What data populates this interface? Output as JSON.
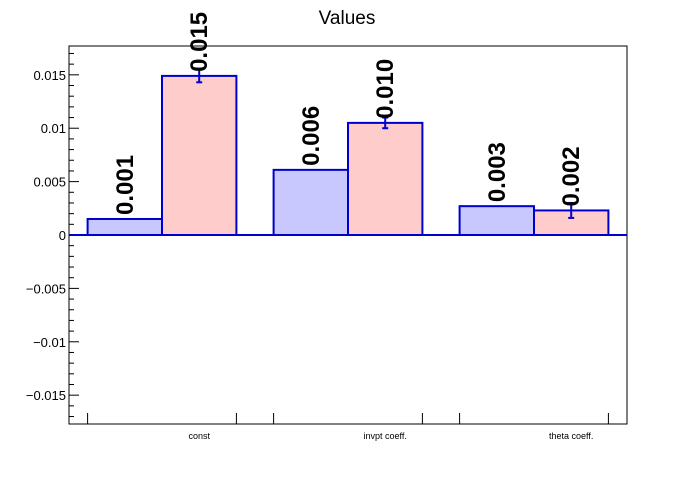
{
  "chart_data": {
    "type": "bar",
    "title": "Values",
    "xlabel": "",
    "ylabel": "",
    "categories": [
      "const",
      "invpt coeff.",
      "theta coeff."
    ],
    "ylim": [
      -0.0177,
      0.0177
    ],
    "yticks": [
      -0.015,
      -0.01,
      -0.005,
      0,
      0.005,
      0.01,
      0.015
    ],
    "ytick_labels": [
      "−0.015",
      "−0.01",
      "−0.005",
      "0",
      "0.005",
      "0.01",
      "0.015"
    ],
    "grid": false,
    "series": [
      {
        "values": [
          0.0015,
          0.0061,
          0.0027
        ],
        "labels": [
          "0.001",
          "0.006",
          "0.003"
        ],
        "fill": "#c8c8ff",
        "stroke": "#0000cc",
        "has_errors": false
      },
      {
        "values": [
          0.0149,
          0.0105,
          0.0023
        ],
        "labels": [
          "0.015",
          "0.010",
          "0.002"
        ],
        "errors": [
          0.0006,
          0.0005,
          0.0007
        ],
        "fill": "#ffcccc",
        "stroke": "#0000cc",
        "has_errors": true
      }
    ]
  }
}
